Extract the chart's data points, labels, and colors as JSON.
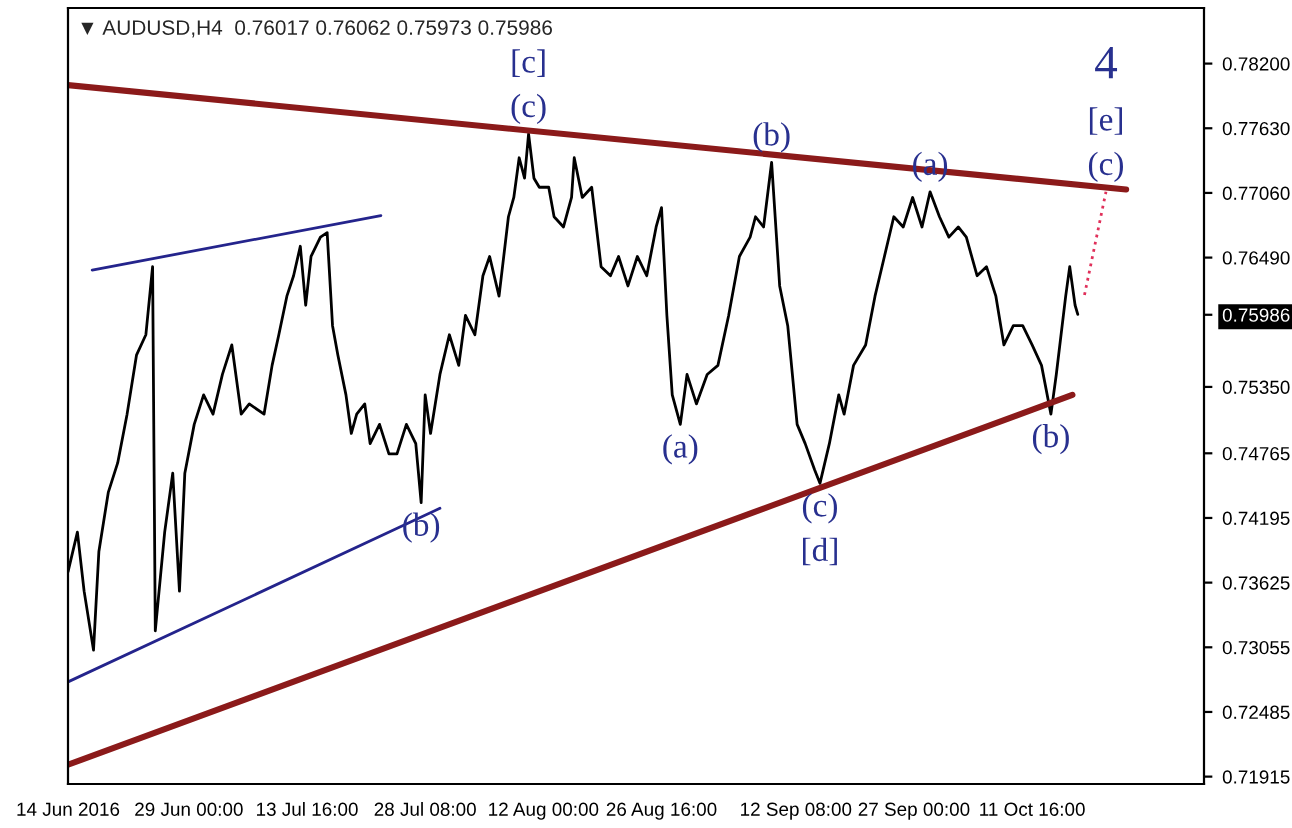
{
  "chart_data": {
    "type": "line",
    "title": "▼ AUDUSD,H4  0.76017 0.76062 0.75973 0.75986",
    "x": [
      "2016-06-14T00:00",
      "2016-06-15T04:00",
      "2016-06-16T00:00",
      "2016-06-17T04:00",
      "2016-06-17T20:00",
      "2016-06-19T00:00",
      "2016-06-20T04:00",
      "2016-06-21T08:00",
      "2016-06-22T12:00",
      "2016-06-23T16:00",
      "2016-06-24T12:00",
      "2016-06-24T20:00",
      "2016-06-26T00:00",
      "2016-06-27T00:00",
      "2016-06-27T20:00",
      "2016-06-28T12:00",
      "2016-06-29T16:00",
      "2016-06-30T20:00",
      "2016-07-02T00:00",
      "2016-07-03T04:00",
      "2016-07-04T08:00",
      "2016-07-05T12:00",
      "2016-07-06T12:00",
      "2016-07-08T08:00",
      "2016-07-09T08:00",
      "2016-07-10T04:00",
      "2016-07-11T04:00",
      "2016-07-12T00:00",
      "2016-07-12T20:00",
      "2016-07-13T12:00",
      "2016-07-14T04:00",
      "2016-07-15T08:00",
      "2016-07-16T04:00",
      "2016-07-16T20:00",
      "2016-07-17T12:00",
      "2016-07-18T12:00",
      "2016-07-19T04:00",
      "2016-07-19T20:00",
      "2016-07-20T20:00",
      "2016-07-21T12:00",
      "2016-07-22T16:00",
      "2016-07-23T20:00",
      "2016-07-24T20:00",
      "2016-07-26T00:00",
      "2016-07-27T04:00",
      "2016-07-27T20:00",
      "2016-07-28T08:00",
      "2016-07-29T00:00",
      "2016-07-30T04:00",
      "2016-07-31T08:00",
      "2016-08-01T12:00",
      "2016-08-02T08:00",
      "2016-08-03T12:00",
      "2016-08-04T12:00",
      "2016-08-05T08:00",
      "2016-08-06T12:00",
      "2016-08-07T16:00",
      "2016-08-08T08:00",
      "2016-08-09T00:00",
      "2016-08-09T16:00",
      "2016-08-10T04:00",
      "2016-08-10T20:00",
      "2016-08-11T12:00",
      "2016-08-12T16:00",
      "2016-08-13T08:00",
      "2016-08-14T12:00",
      "2016-08-15T12:00",
      "2016-08-15T20:00",
      "2016-08-16T20:00",
      "2016-08-18T00:00",
      "2016-08-19T04:00",
      "2016-08-20T08:00",
      "2016-08-21T08:00",
      "2016-08-22T12:00",
      "2016-08-23T16:00",
      "2016-08-24T20:00",
      "2016-08-26T00:00",
      "2016-08-26T16:00",
      "2016-08-27T08:00",
      "2016-08-28T00:00",
      "2016-08-29T00:00",
      "2016-08-29T20:00",
      "2016-08-31T00:00",
      "2016-09-01T08:00",
      "2016-09-02T16:00",
      "2016-09-04T00:00",
      "2016-09-05T08:00",
      "2016-09-06T16:00",
      "2016-09-07T08:00",
      "2016-09-08T08:00",
      "2016-09-09T08:00",
      "2016-09-10T08:00",
      "2016-09-11T08:00",
      "2016-09-12T12:00",
      "2016-09-13T12:00",
      "2016-09-14T16:00",
      "2016-09-15T08:00",
      "2016-09-16T12:00",
      "2016-09-17T16:00",
      "2016-09-18T08:00",
      "2016-09-19T12:00",
      "2016-09-21T00:00",
      "2016-09-22T04:00",
      "2016-09-23T08:00",
      "2016-09-24T12:00",
      "2016-09-25T16:00",
      "2016-09-26T20:00",
      "2016-09-28T00:00",
      "2016-09-29T00:00",
      "2016-09-30T04:00",
      "2016-10-01T08:00",
      "2016-10-02T12:00",
      "2016-10-03T12:00",
      "2016-10-04T20:00",
      "2016-10-06T00:00",
      "2016-10-07T04:00",
      "2016-10-08T04:00",
      "2016-10-09T08:00",
      "2016-10-10T12:00",
      "2016-10-11T16:00",
      "2016-10-12T20:00",
      "2016-10-14T00:00",
      "2016-10-14T16:00",
      "2016-10-15T20:00",
      "2016-10-16T08:00",
      "2016-10-17T00:00",
      "2016-10-17T08:00"
    ],
    "series": [
      {
        "color": "#000000",
        "values": [
          0.7372,
          0.7407,
          0.7355,
          0.7303,
          0.739,
          0.7442,
          0.7468,
          0.7511,
          0.7563,
          0.7581,
          0.7641,
          0.732,
          0.7407,
          0.7459,
          0.7355,
          0.7459,
          0.7502,
          0.7528,
          0.7511,
          0.7546,
          0.7572,
          0.7511,
          0.752,
          0.7511,
          0.7554,
          0.7581,
          0.7615,
          0.7633,
          0.7659,
          0.7607,
          0.765,
          0.7667,
          0.7671,
          0.7589,
          0.7563,
          0.7528,
          0.7494,
          0.7511,
          0.752,
          0.7485,
          0.7502,
          0.7476,
          0.7476,
          0.7502,
          0.7485,
          0.7433,
          0.7528,
          0.7494,
          0.7546,
          0.7581,
          0.7554,
          0.7598,
          0.7581,
          0.7633,
          0.765,
          0.7615,
          0.7685,
          0.7702,
          0.7737,
          0.7719,
          0.7758,
          0.7719,
          0.7711,
          0.7711,
          0.7685,
          0.7676,
          0.7702,
          0.7737,
          0.7702,
          0.7711,
          0.7641,
          0.7633,
          0.765,
          0.7624,
          0.765,
          0.7633,
          0.7676,
          0.7693,
          0.7598,
          0.7528,
          0.7502,
          0.7546,
          0.752,
          0.7546,
          0.7554,
          0.7598,
          0.765,
          0.7667,
          0.7685,
          0.7676,
          0.7733,
          0.7624,
          0.7589,
          0.7502,
          0.7485,
          0.7462,
          0.745,
          0.7485,
          0.7528,
          0.7511,
          0.7554,
          0.7572,
          0.7615,
          0.765,
          0.7685,
          0.7676,
          0.7702,
          0.7676,
          0.7707,
          0.7685,
          0.7667,
          0.7676,
          0.7667,
          0.7633,
          0.7641,
          0.7615,
          0.7572,
          0.7589,
          0.7589,
          0.7572,
          0.7554,
          0.7511,
          0.7546,
          0.7615,
          0.7641,
          0.7607,
          0.7599
        ]
      },
      {
        "type": "line",
        "color": "#8b1a1a",
        "x": [
          "2016-06-14T00:00",
          "2016-10-23T08:00"
        ],
        "values": [
          0.7801,
          0.7709
        ]
      },
      {
        "type": "line",
        "color": "#8b1a1a",
        "x": [
          "2016-06-14T00:00",
          "2016-10-16T16:00"
        ],
        "values": [
          0.7202,
          0.7528
        ]
      },
      {
        "type": "line",
        "color": "#24248c",
        "x": [
          "2016-06-17T00:00",
          "2016-07-22T20:00"
        ],
        "values": [
          0.7638,
          0.7686
        ]
      },
      {
        "type": "line",
        "color": "#24248c",
        "x": [
          "2016-06-14T00:00",
          "2016-07-30T04:00"
        ],
        "values": [
          0.7275,
          0.7428
        ]
      },
      {
        "type": "line",
        "color": "#e0305a",
        "line_style": "dotted",
        "x": [
          "2016-10-18T04:00",
          "2016-10-20T20:00"
        ],
        "values": [
          0.7616,
          0.7707
        ]
      }
    ],
    "xlim": [
      "2016-06-14T00:00",
      "2016-11-02T00:00"
    ],
    "ylim": [
      0.7185,
      0.7869
    ],
    "xticks": [
      {
        "value": "2016-06-14T00:00",
        "label": "14 Jun 2016"
      },
      {
        "value": "2016-06-29T00:00",
        "label": "29 Jun 00:00"
      },
      {
        "value": "2016-07-13T16:00",
        "label": "13 Jul 16:00"
      },
      {
        "value": "2016-07-28T08:00",
        "label": "28 Jul 08:00"
      },
      {
        "value": "2016-08-12T00:00",
        "label": "12 Aug 00:00"
      },
      {
        "value": "2016-08-26T16:00",
        "label": "26 Aug 16:00"
      },
      {
        "value": "2016-09-12T08:00",
        "label": "12 Sep 08:00"
      },
      {
        "value": "2016-09-27T00:00",
        "label": "27 Sep 00:00"
      },
      {
        "value": "2016-10-11T16:00",
        "label": "11 Oct 16:00"
      }
    ],
    "yticks": [
      {
        "value": 0.782,
        "label": "0.78200"
      },
      {
        "value": 0.7763,
        "label": "0.77630"
      },
      {
        "value": 0.7706,
        "label": "0.77060"
      },
      {
        "value": 0.7649,
        "label": "0.76490"
      },
      {
        "value": 0.75986,
        "label": "0.75986"
      },
      {
        "value": 0.7535,
        "label": "0.75350"
      },
      {
        "value": 0.74765,
        "label": "0.74765"
      },
      {
        "value": 0.74195,
        "label": "0.74195"
      },
      {
        "value": 0.73625,
        "label": "0.73625"
      },
      {
        "value": 0.73055,
        "label": "0.73055"
      },
      {
        "value": 0.72485,
        "label": "0.72485"
      },
      {
        "value": 0.71915,
        "label": "0.71915"
      }
    ],
    "annotations": [
      {
        "text": "(c)",
        "x": "2016-08-10T04:00",
        "y": 0.7758
      },
      {
        "text": "[c]",
        "x": "2016-08-10T04:00",
        "y": 0.7758
      },
      {
        "text": "(b)",
        "x": "2016-09-09T08:00",
        "y": 0.7733
      },
      {
        "text": "(a)",
        "x": "2016-09-29T00:00",
        "y": 0.7707
      },
      {
        "text": "(c)",
        "x": "2016-10-20T20:00",
        "y": 0.7707
      },
      {
        "text": "[e]",
        "x": "2016-10-20T20:00",
        "y": 0.7707
      },
      {
        "text": "4",
        "x": "2016-10-20T20:00",
        "y": 0.7707
      },
      {
        "text": "(a)",
        "x": "2016-08-29T00:00",
        "y": 0.7502
      },
      {
        "text": "(b)",
        "x": "2016-07-27T20:00",
        "y": 0.7433
      },
      {
        "text": "(c)",
        "x": "2016-09-15T08:00",
        "y": 0.745
      },
      {
        "text": "[d]",
        "x": "2016-09-15T08:00",
        "y": 0.745
      },
      {
        "text": "(b)",
        "x": "2016-10-14T00:00",
        "y": 0.7511
      }
    ],
    "grid": false,
    "legend": false,
    "marker": "none",
    "line_style": "solid"
  }
}
